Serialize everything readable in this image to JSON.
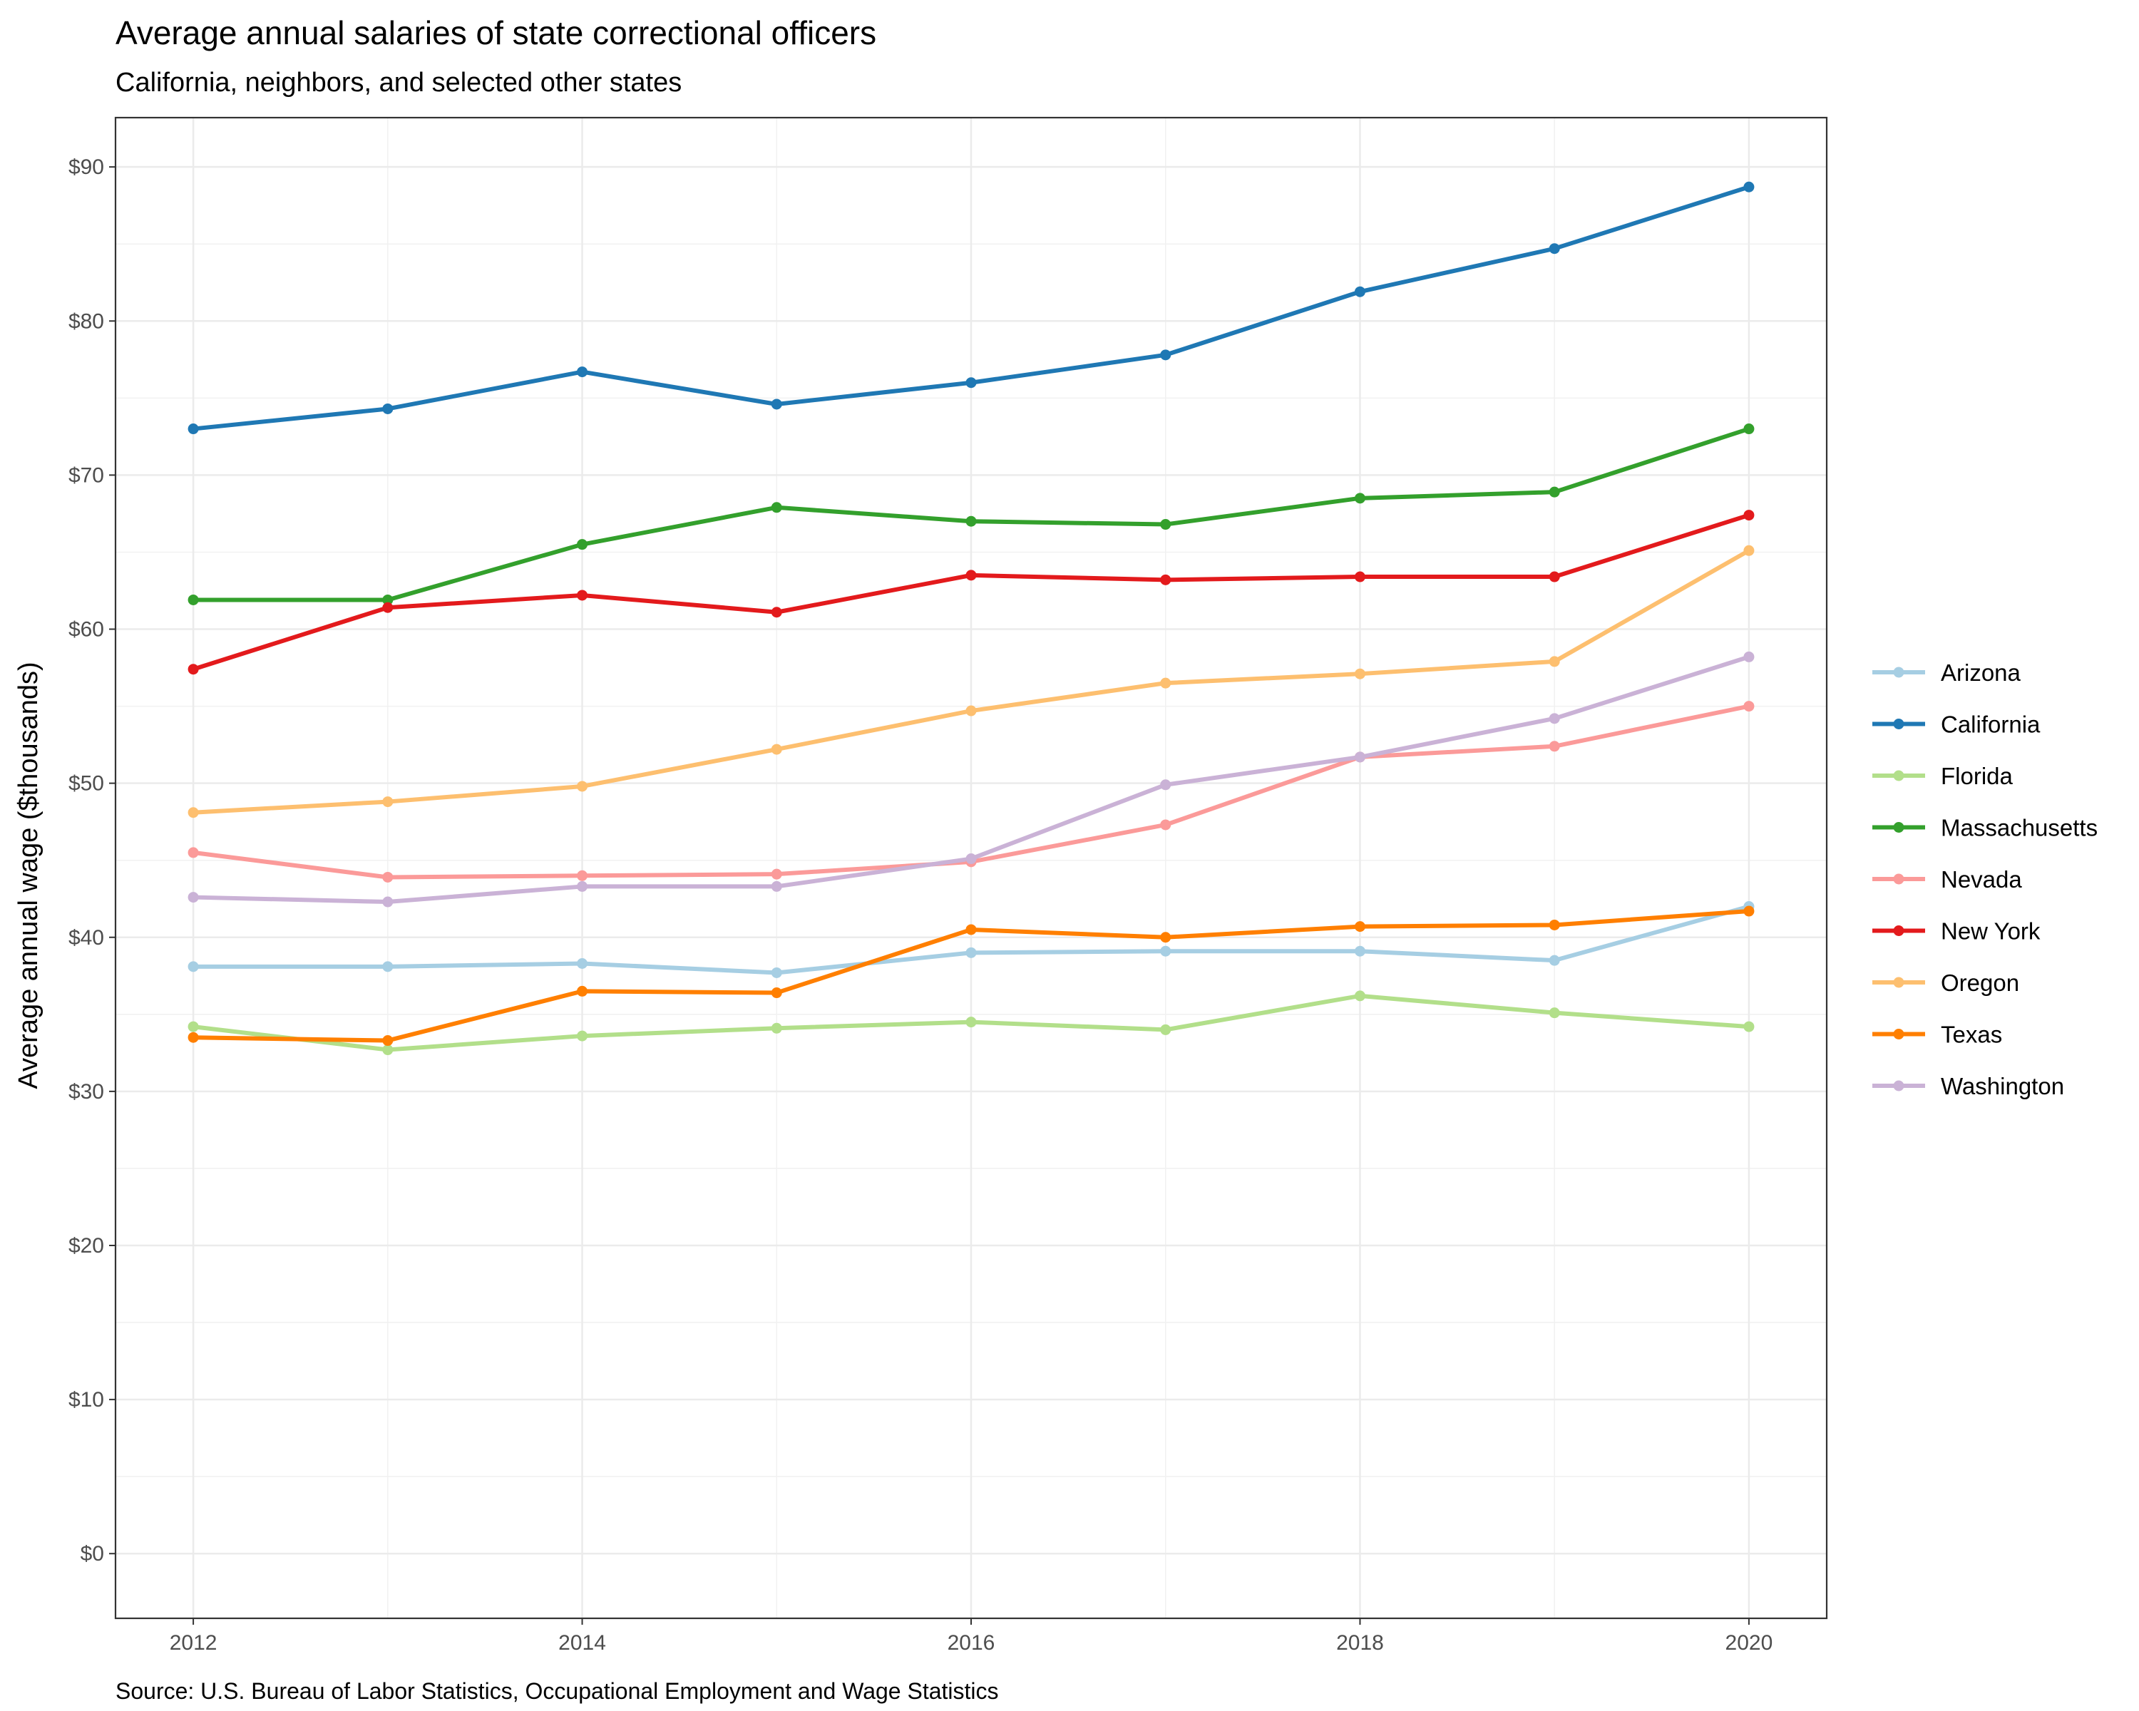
{
  "chart_data": {
    "type": "line",
    "title": "Average annual salaries of state correctional officers",
    "subtitle": "California, neighbors, and selected other states",
    "caption": "Source: U.S. Bureau of Labor Statistics, Occupational Employment and Wage Statistics",
    "xlabel": "",
    "ylabel": "Average annual wage ($thousands)",
    "x": [
      2012,
      2013,
      2014,
      2015,
      2016,
      2017,
      2018,
      2019,
      2020
    ],
    "xlim": [
      2011.6,
      2020.4
    ],
    "ylim": [
      -4.2,
      93.2
    ],
    "x_ticks": [
      2012,
      2014,
      2016,
      2018,
      2020
    ],
    "x_tick_labels": [
      "2012",
      "2014",
      "2016",
      "2018",
      "2020"
    ],
    "y_ticks": [
      0,
      10,
      20,
      30,
      40,
      50,
      60,
      70,
      80,
      90
    ],
    "y_tick_labels": [
      "$0",
      "$10",
      "$20",
      "$30",
      "$40",
      "$50",
      "$60",
      "$70",
      "$80",
      "$90"
    ],
    "grid": true,
    "legend_position": "right",
    "series": [
      {
        "name": "Arizona",
        "color": "#a6cee3",
        "values": [
          38.1,
          38.1,
          38.3,
          37.7,
          39.0,
          39.1,
          39.1,
          38.5,
          42.0
        ]
      },
      {
        "name": "California",
        "color": "#1f78b4",
        "values": [
          73.0,
          74.3,
          76.7,
          74.6,
          76.0,
          77.8,
          81.9,
          84.7,
          88.7
        ]
      },
      {
        "name": "Florida",
        "color": "#b2df8a",
        "values": [
          34.2,
          32.7,
          33.6,
          34.1,
          34.5,
          34.0,
          36.2,
          35.1,
          34.2
        ]
      },
      {
        "name": "Massachusetts",
        "color": "#33a02c",
        "values": [
          61.9,
          61.9,
          65.5,
          67.9,
          67.0,
          66.8,
          68.5,
          68.9,
          73.0
        ]
      },
      {
        "name": "Nevada",
        "color": "#fb9a99",
        "values": [
          45.5,
          43.9,
          44.0,
          44.1,
          44.9,
          47.3,
          51.7,
          52.4,
          55.0
        ]
      },
      {
        "name": "New York",
        "color": "#e31a1c",
        "values": [
          57.4,
          61.4,
          62.2,
          61.1,
          63.5,
          63.2,
          63.4,
          63.4,
          67.4
        ]
      },
      {
        "name": "Oregon",
        "color": "#fdbf6f",
        "values": [
          48.1,
          48.8,
          49.8,
          52.2,
          54.7,
          56.5,
          57.1,
          57.9,
          65.1
        ]
      },
      {
        "name": "Texas",
        "color": "#ff7f00",
        "values": [
          33.5,
          33.3,
          36.5,
          36.4,
          40.5,
          40.0,
          40.7,
          40.8,
          41.7
        ]
      },
      {
        "name": "Washington",
        "color": "#cab2d6",
        "values": [
          42.6,
          42.3,
          43.3,
          43.3,
          45.1,
          49.9,
          51.7,
          54.2,
          58.2
        ]
      }
    ]
  }
}
